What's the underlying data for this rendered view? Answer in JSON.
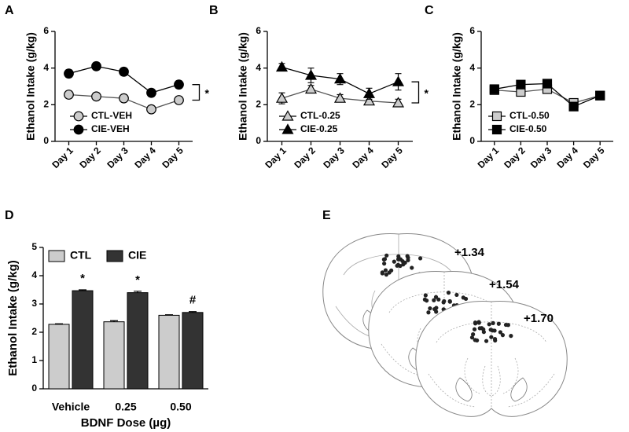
{
  "chart_data": [
    {
      "type": "line",
      "panel": "A",
      "ylabel": "Ethanol Intake (g/kg)",
      "categories": [
        "Day 1",
        "Day 2",
        "Day 3",
        "Day 4",
        "Day 5"
      ],
      "ylim": [
        0,
        6
      ],
      "yticks": [
        0,
        2,
        4,
        6
      ],
      "legend": "lower left",
      "annotation": "*",
      "series": [
        {
          "name": "CTL-VEH",
          "color": "#cccccc",
          "marker": "circle",
          "values": [
            2.55,
            2.45,
            2.35,
            1.75,
            2.25
          ],
          "errors": [
            0.1,
            0.1,
            0.1,
            0.1,
            0.1
          ]
        },
        {
          "name": "CIE-VEH",
          "color": "#000000",
          "marker": "circle",
          "values": [
            3.7,
            4.1,
            3.8,
            2.65,
            3.1
          ],
          "errors": [
            0.2,
            0.2,
            0.2,
            0.15,
            0.2
          ]
        }
      ]
    },
    {
      "type": "line",
      "panel": "B",
      "ylabel": "Ethanol Intake (g/kg)",
      "categories": [
        "Day 1",
        "Day 2",
        "Day 3",
        "Day 4",
        "Day 5"
      ],
      "ylim": [
        0,
        6
      ],
      "yticks": [
        0,
        2,
        4,
        6
      ],
      "legend": "lower left",
      "annotation": "*",
      "series": [
        {
          "name": "CTL-0.25",
          "color": "#cccccc",
          "marker": "triangle",
          "values": [
            2.35,
            2.85,
            2.35,
            2.2,
            2.1
          ],
          "errors": [
            0.3,
            0.2,
            0.2,
            0.2,
            0.2
          ]
        },
        {
          "name": "CIE-0.25",
          "color": "#000000",
          "marker": "triangle",
          "values": [
            4.05,
            3.6,
            3.4,
            2.6,
            3.25
          ],
          "errors": [
            0.2,
            0.4,
            0.3,
            0.3,
            0.45
          ]
        }
      ]
    },
    {
      "type": "line",
      "panel": "C",
      "ylabel": "Ethanol Intake (g/kg)",
      "categories": [
        "Day 1",
        "Day 2",
        "Day 3",
        "Day 4",
        "Day 5"
      ],
      "ylim": [
        0,
        6
      ],
      "yticks": [
        0,
        2,
        4,
        6
      ],
      "legend": "lower left",
      "series": [
        {
          "name": "CTL-0.50",
          "color": "#cccccc",
          "marker": "square",
          "values": [
            2.8,
            2.7,
            2.85,
            2.1,
            2.5
          ],
          "errors": [
            0.15,
            0.15,
            0.15,
            0.1,
            0.1
          ]
        },
        {
          "name": "CIE-0.50",
          "color": "#000000",
          "marker": "square",
          "values": [
            2.85,
            3.1,
            3.15,
            1.9,
            2.5
          ],
          "errors": [
            0.15,
            0.15,
            0.15,
            0.1,
            0.1
          ]
        }
      ]
    },
    {
      "type": "bar",
      "panel": "D",
      "ylabel": "Ethanol Intake (g/kg)",
      "xlabel": "BDNF Dose (µg)",
      "categories": [
        "Vehicle",
        "0.25",
        "0.50"
      ],
      "ylim": [
        0,
        5
      ],
      "yticks": [
        0,
        1,
        2,
        3,
        4,
        5
      ],
      "legend": "upper left",
      "annotations": [
        "*",
        "*",
        "#"
      ],
      "series": [
        {
          "name": "CTL",
          "color": "#cccccc",
          "values": [
            2.28,
            2.37,
            2.6
          ],
          "errors": [
            0.02,
            0.04,
            0.02
          ]
        },
        {
          "name": "CIE",
          "color": "#333333",
          "values": [
            3.47,
            3.4,
            2.7
          ],
          "errors": [
            0.03,
            0.05,
            0.03
          ]
        }
      ]
    }
  ],
  "diagram": {
    "panel": "E",
    "sections": [
      "+1.34",
      "+1.54",
      "+1.70"
    ]
  }
}
